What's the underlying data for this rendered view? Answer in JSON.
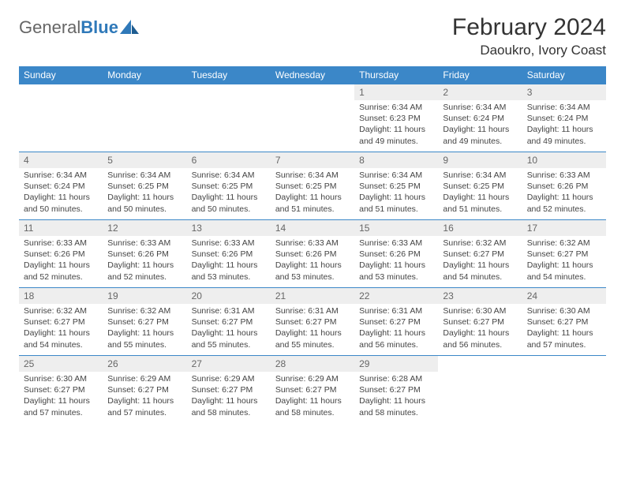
{
  "brand": {
    "part1": "General",
    "part2": "Blue"
  },
  "title": "February 2024",
  "location": "Daoukro, Ivory Coast",
  "colors": {
    "header_bg": "#3b87c8",
    "header_fg": "#ffffff",
    "daynum_bg": "#eeeeee",
    "daynum_fg": "#666666",
    "border": "#3b87c8",
    "text": "#444444",
    "brand_blue": "#2f79b9"
  },
  "weekdays": [
    "Sunday",
    "Monday",
    "Tuesday",
    "Wednesday",
    "Thursday",
    "Friday",
    "Saturday"
  ],
  "grid": [
    [
      {
        "empty": true
      },
      {
        "empty": true
      },
      {
        "empty": true
      },
      {
        "empty": true
      },
      {
        "n": "1",
        "sr": "6:34 AM",
        "ss": "6:23 PM",
        "dl": "11 hours and 49 minutes."
      },
      {
        "n": "2",
        "sr": "6:34 AM",
        "ss": "6:24 PM",
        "dl": "11 hours and 49 minutes."
      },
      {
        "n": "3",
        "sr": "6:34 AM",
        "ss": "6:24 PM",
        "dl": "11 hours and 49 minutes."
      }
    ],
    [
      {
        "n": "4",
        "sr": "6:34 AM",
        "ss": "6:24 PM",
        "dl": "11 hours and 50 minutes."
      },
      {
        "n": "5",
        "sr": "6:34 AM",
        "ss": "6:25 PM",
        "dl": "11 hours and 50 minutes."
      },
      {
        "n": "6",
        "sr": "6:34 AM",
        "ss": "6:25 PM",
        "dl": "11 hours and 50 minutes."
      },
      {
        "n": "7",
        "sr": "6:34 AM",
        "ss": "6:25 PM",
        "dl": "11 hours and 51 minutes."
      },
      {
        "n": "8",
        "sr": "6:34 AM",
        "ss": "6:25 PM",
        "dl": "11 hours and 51 minutes."
      },
      {
        "n": "9",
        "sr": "6:34 AM",
        "ss": "6:25 PM",
        "dl": "11 hours and 51 minutes."
      },
      {
        "n": "10",
        "sr": "6:33 AM",
        "ss": "6:26 PM",
        "dl": "11 hours and 52 minutes."
      }
    ],
    [
      {
        "n": "11",
        "sr": "6:33 AM",
        "ss": "6:26 PM",
        "dl": "11 hours and 52 minutes."
      },
      {
        "n": "12",
        "sr": "6:33 AM",
        "ss": "6:26 PM",
        "dl": "11 hours and 52 minutes."
      },
      {
        "n": "13",
        "sr": "6:33 AM",
        "ss": "6:26 PM",
        "dl": "11 hours and 53 minutes."
      },
      {
        "n": "14",
        "sr": "6:33 AM",
        "ss": "6:26 PM",
        "dl": "11 hours and 53 minutes."
      },
      {
        "n": "15",
        "sr": "6:33 AM",
        "ss": "6:26 PM",
        "dl": "11 hours and 53 minutes."
      },
      {
        "n": "16",
        "sr": "6:32 AM",
        "ss": "6:27 PM",
        "dl": "11 hours and 54 minutes."
      },
      {
        "n": "17",
        "sr": "6:32 AM",
        "ss": "6:27 PM",
        "dl": "11 hours and 54 minutes."
      }
    ],
    [
      {
        "n": "18",
        "sr": "6:32 AM",
        "ss": "6:27 PM",
        "dl": "11 hours and 54 minutes."
      },
      {
        "n": "19",
        "sr": "6:32 AM",
        "ss": "6:27 PM",
        "dl": "11 hours and 55 minutes."
      },
      {
        "n": "20",
        "sr": "6:31 AM",
        "ss": "6:27 PM",
        "dl": "11 hours and 55 minutes."
      },
      {
        "n": "21",
        "sr": "6:31 AM",
        "ss": "6:27 PM",
        "dl": "11 hours and 55 minutes."
      },
      {
        "n": "22",
        "sr": "6:31 AM",
        "ss": "6:27 PM",
        "dl": "11 hours and 56 minutes."
      },
      {
        "n": "23",
        "sr": "6:30 AM",
        "ss": "6:27 PM",
        "dl": "11 hours and 56 minutes."
      },
      {
        "n": "24",
        "sr": "6:30 AM",
        "ss": "6:27 PM",
        "dl": "11 hours and 57 minutes."
      }
    ],
    [
      {
        "n": "25",
        "sr": "6:30 AM",
        "ss": "6:27 PM",
        "dl": "11 hours and 57 minutes."
      },
      {
        "n": "26",
        "sr": "6:29 AM",
        "ss": "6:27 PM",
        "dl": "11 hours and 57 minutes."
      },
      {
        "n": "27",
        "sr": "6:29 AM",
        "ss": "6:27 PM",
        "dl": "11 hours and 58 minutes."
      },
      {
        "n": "28",
        "sr": "6:29 AM",
        "ss": "6:27 PM",
        "dl": "11 hours and 58 minutes."
      },
      {
        "n": "29",
        "sr": "6:28 AM",
        "ss": "6:27 PM",
        "dl": "11 hours and 58 minutes."
      },
      {
        "empty": true
      },
      {
        "empty": true
      }
    ]
  ],
  "labels": {
    "sunrise": "Sunrise:",
    "sunset": "Sunset:",
    "daylight": "Daylight:"
  }
}
